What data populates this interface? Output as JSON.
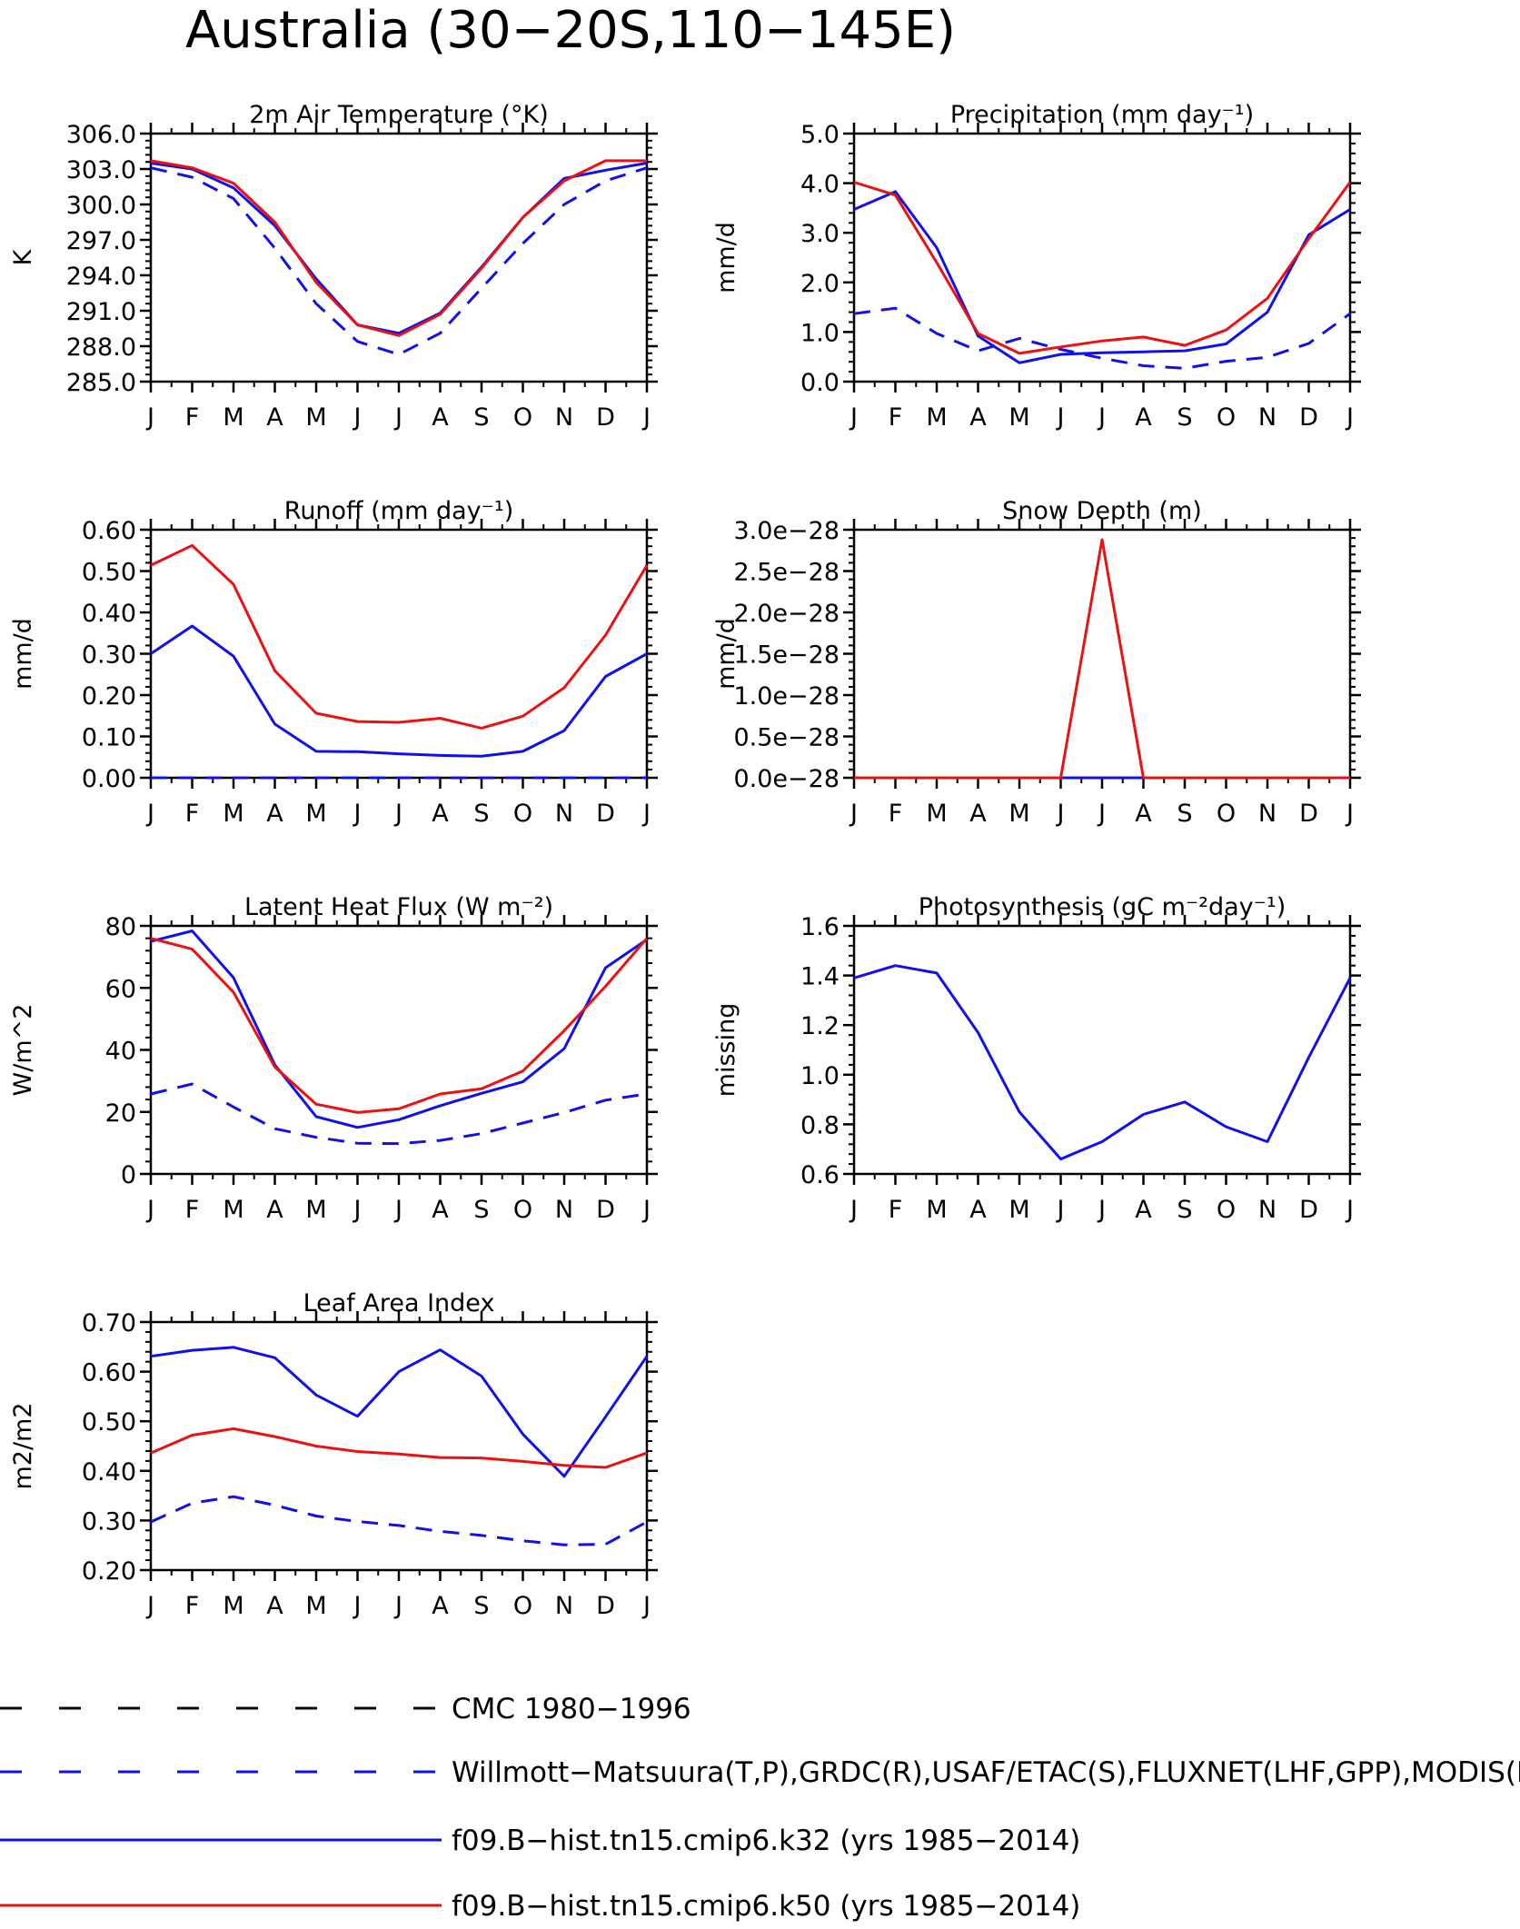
{
  "page_title": "Australia (30−20S,110−145E)",
  "month_labels": [
    "J",
    "F",
    "M",
    "A",
    "M",
    "J",
    "J",
    "A",
    "S",
    "O",
    "N",
    "D",
    "J"
  ],
  "colors": {
    "model_k32": "#1010ee",
    "model_k50": "#ee1010",
    "obs": "#1010ee",
    "cmc": "#000000",
    "axis": "#000000"
  },
  "legend": [
    {
      "label": "CMC 1980−1996",
      "style": "dashed",
      "color": "#000000"
    },
    {
      "label": "Willmott−Matsuura(T,P),GRDC(R),USAF/ETAC(S),FLUXNET(LHF,GPP),MODIS(L",
      "style": "dashed",
      "color": "#1010ee"
    },
    {
      "label": "f09.B−hist.tn15.cmip6.k32 (yrs 1985−2014)",
      "style": "solid",
      "color": "#1010ee"
    },
    {
      "label": "f09.B−hist.tn15.cmip6.k50 (yrs 1985−2014)",
      "style": "solid",
      "color": "#ee1010"
    }
  ],
  "chart_data": [
    {
      "id": "temp",
      "type": "line",
      "title": "2m Air Temperature (°K)",
      "ylabel": "K",
      "ylim": [
        285,
        306
      ],
      "ytick_values": [
        285,
        288,
        291,
        294,
        297,
        300,
        303,
        306
      ],
      "ytick_labels": [
        "285.0",
        "288.0",
        "291.0",
        "294.0",
        "297.0",
        "300.0",
        "303.0",
        "306.0"
      ],
      "categories": [
        "J",
        "F",
        "M",
        "A",
        "M",
        "J",
        "J",
        "A",
        "S",
        "O",
        "N",
        "D",
        "J"
      ],
      "series": [
        {
          "style": "dashed",
          "color": "#1010ee",
          "values": [
            303.1,
            302.3,
            300.5,
            296.3,
            291.6,
            288.4,
            287.3,
            289.1,
            292.9,
            296.7,
            300.0,
            302.0,
            303.1
          ]
        },
        {
          "style": "solid",
          "color": "#1010ee",
          "values": [
            303.5,
            303.0,
            301.4,
            298.2,
            293.7,
            289.8,
            289.1,
            290.8,
            294.7,
            298.9,
            302.2,
            302.9,
            303.5
          ]
        },
        {
          "style": "solid",
          "color": "#ee1010",
          "values": [
            303.7,
            303.1,
            301.8,
            298.5,
            293.4,
            289.8,
            288.9,
            290.7,
            294.6,
            298.9,
            302.0,
            303.7,
            303.7
          ]
        }
      ]
    },
    {
      "id": "precip",
      "type": "line",
      "title": "Precipitation (mm day⁻¹)",
      "ylabel": "mm/d",
      "ylim": [
        0,
        5
      ],
      "ytick_values": [
        0,
        1,
        2,
        3,
        4,
        5
      ],
      "ytick_labels": [
        "0.0",
        "1.0",
        "2.0",
        "3.0",
        "4.0",
        "5.0"
      ],
      "categories": [
        "J",
        "F",
        "M",
        "A",
        "M",
        "J",
        "J",
        "A",
        "S",
        "O",
        "N",
        "D",
        "J"
      ],
      "series": [
        {
          "style": "dashed",
          "color": "#1010ee",
          "values": [
            1.37,
            1.48,
            0.97,
            0.62,
            0.87,
            0.65,
            0.47,
            0.32,
            0.27,
            0.41,
            0.49,
            0.77,
            1.37
          ]
        },
        {
          "style": "solid",
          "color": "#1010ee",
          "values": [
            3.47,
            3.83,
            2.7,
            0.92,
            0.38,
            0.55,
            0.58,
            0.6,
            0.62,
            0.76,
            1.4,
            2.96,
            3.47
          ]
        },
        {
          "style": "solid",
          "color": "#ee1010",
          "values": [
            4.02,
            3.76,
            2.4,
            0.97,
            0.57,
            0.7,
            0.82,
            0.9,
            0.73,
            1.04,
            1.68,
            2.88,
            4.02
          ]
        }
      ]
    },
    {
      "id": "runoff",
      "type": "line",
      "title": "Runoff (mm day⁻¹)",
      "ylabel": "mm/d",
      "ylim": [
        0,
        0.6
      ],
      "ytick_values": [
        0,
        0.1,
        0.2,
        0.3,
        0.4,
        0.5,
        0.6
      ],
      "ytick_labels": [
        "0.00",
        "0.10",
        "0.20",
        "0.30",
        "0.40",
        "0.50",
        "0.60"
      ],
      "categories": [
        "J",
        "F",
        "M",
        "A",
        "M",
        "J",
        "J",
        "A",
        "S",
        "O",
        "N",
        "D",
        "J"
      ],
      "series": [
        {
          "style": "dashed",
          "color": "#1010ee",
          "values": [
            0,
            0,
            0,
            0,
            0,
            0,
            0,
            0,
            0,
            0,
            0,
            0,
            0
          ]
        },
        {
          "style": "solid",
          "color": "#1010ee",
          "values": [
            0.3,
            0.367,
            0.294,
            0.13,
            0.064,
            0.063,
            0.058,
            0.054,
            0.052,
            0.064,
            0.114,
            0.245,
            0.3
          ]
        },
        {
          "style": "solid",
          "color": "#ee1010",
          "values": [
            0.514,
            0.562,
            0.468,
            0.259,
            0.156,
            0.136,
            0.134,
            0.144,
            0.12,
            0.149,
            0.218,
            0.345,
            0.514
          ]
        }
      ]
    },
    {
      "id": "snow",
      "type": "line",
      "title": "Snow Depth (m)",
      "ylabel": "mm/d",
      "ylim": [
        0,
        3e-28
      ],
      "ytick_values": [
        0,
        5e-29,
        1e-28,
        1.5e-28,
        2e-28,
        2.5e-28,
        3e-28
      ],
      "ytick_labels": [
        "0.0e−28",
        "0.5e−28",
        "1.0e−28",
        "1.5e−28",
        "2.0e−28",
        "2.5e−28",
        "3.0e−28"
      ],
      "categories": [
        "J",
        "F",
        "M",
        "A",
        "M",
        "J",
        "J",
        "A",
        "S",
        "O",
        "N",
        "D",
        "J"
      ],
      "series": [
        {
          "style": "dashed",
          "color": "#1010ee",
          "values": [
            0,
            0,
            0,
            0,
            0,
            0,
            0,
            0,
            0,
            0,
            0,
            0,
            0
          ]
        },
        {
          "style": "solid",
          "color": "#1010ee",
          "values": [
            0,
            0,
            0,
            0,
            0,
            0,
            0,
            0,
            0,
            0,
            0,
            0,
            0
          ]
        },
        {
          "style": "solid",
          "color": "#ee1010",
          "values": [
            0,
            0,
            0,
            0,
            0,
            0,
            2.88e-28,
            0,
            0,
            0,
            0,
            0,
            0
          ]
        }
      ]
    },
    {
      "id": "lhf",
      "type": "line",
      "title": "Latent Heat Flux (W m⁻²)",
      "ylabel": "W/m^2",
      "ylim": [
        0,
        80
      ],
      "ytick_values": [
        0,
        20,
        40,
        60,
        80
      ],
      "ytick_labels": [
        "0",
        "20",
        "40",
        "60",
        "80"
      ],
      "categories": [
        "J",
        "F",
        "M",
        "A",
        "M",
        "J",
        "J",
        "A",
        "S",
        "O",
        "N",
        "D",
        "J"
      ],
      "series": [
        {
          "style": "dashed",
          "color": "#1010ee",
          "values": [
            25.8,
            29.0,
            21.6,
            14.6,
            11.8,
            9.9,
            9.8,
            10.8,
            13.0,
            16.4,
            19.8,
            23.8,
            25.8
          ]
        },
        {
          "style": "solid",
          "color": "#1010ee",
          "values": [
            75.0,
            78.4,
            63.3,
            35.2,
            18.5,
            15.0,
            17.5,
            22.0,
            26.0,
            29.7,
            40.4,
            66.5,
            75.6
          ]
        },
        {
          "style": "solid",
          "color": "#ee1010",
          "values": [
            76.0,
            72.5,
            58.6,
            34.5,
            22.5,
            19.8,
            21.0,
            25.8,
            27.5,
            33.2,
            46.2,
            60.5,
            76.0
          ]
        }
      ]
    },
    {
      "id": "gpp",
      "type": "line",
      "title": "Photosynthesis (gC m⁻²day⁻¹)",
      "ylabel": "missing",
      "ylim": [
        0.6,
        1.6
      ],
      "ytick_values": [
        0.6,
        0.8,
        1.0,
        1.2,
        1.4,
        1.6
      ],
      "ytick_labels": [
        "0.6",
        "0.8",
        "1.0",
        "1.2",
        "1.4",
        "1.6"
      ],
      "categories": [
        "J",
        "F",
        "M",
        "A",
        "M",
        "J",
        "J",
        "A",
        "S",
        "O",
        "N",
        "D",
        "J"
      ],
      "series": [
        {
          "style": "solid",
          "color": "#1010ee",
          "values": [
            1.39,
            1.44,
            1.41,
            1.17,
            0.85,
            0.66,
            0.73,
            0.84,
            0.89,
            0.79,
            0.73,
            1.07,
            1.39
          ]
        }
      ]
    },
    {
      "id": "lai",
      "type": "line",
      "title": "Leaf Area Index",
      "ylabel": "m2/m2",
      "ylim": [
        0.2,
        0.7
      ],
      "ytick_values": [
        0.2,
        0.3,
        0.4,
        0.5,
        0.6,
        0.7
      ],
      "ytick_labels": [
        "0.20",
        "0.30",
        "0.40",
        "0.50",
        "0.60",
        "0.70"
      ],
      "categories": [
        "J",
        "F",
        "M",
        "A",
        "M",
        "J",
        "J",
        "A",
        "S",
        "O",
        "N",
        "D",
        "J"
      ],
      "series": [
        {
          "style": "dashed",
          "color": "#1010ee",
          "values": [
            0.297,
            0.335,
            0.348,
            0.331,
            0.309,
            0.298,
            0.29,
            0.278,
            0.27,
            0.259,
            0.251,
            0.252,
            0.297
          ]
        },
        {
          "style": "solid",
          "color": "#1010ee",
          "values": [
            0.631,
            0.643,
            0.649,
            0.628,
            0.553,
            0.51,
            0.6,
            0.644,
            0.591,
            0.474,
            0.389,
            0.509,
            0.631
          ]
        },
        {
          "style": "solid",
          "color": "#ee1010",
          "values": [
            0.436,
            0.472,
            0.485,
            0.469,
            0.45,
            0.439,
            0.434,
            0.427,
            0.426,
            0.419,
            0.411,
            0.407,
            0.436
          ]
        }
      ]
    }
  ]
}
